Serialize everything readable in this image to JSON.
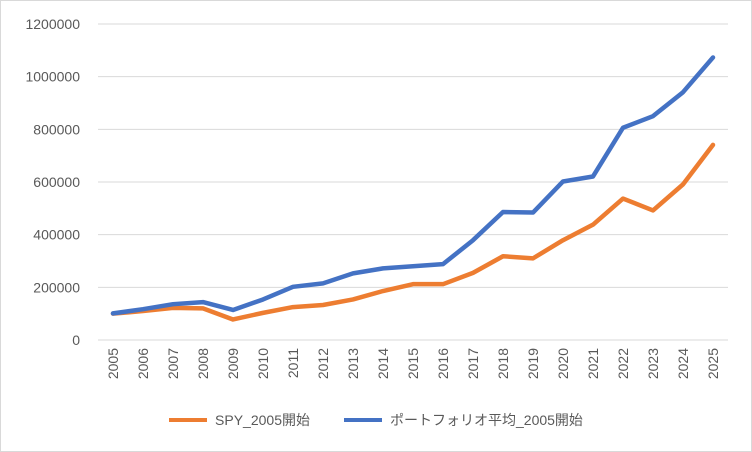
{
  "chart_data": {
    "type": "line",
    "title": "",
    "xlabel": "",
    "ylabel": "",
    "categories": [
      "2005",
      "2006",
      "2007",
      "2008",
      "2009",
      "2010",
      "2011",
      "2012",
      "2013",
      "2014",
      "2015",
      "2016",
      "2017",
      "2018",
      "2019",
      "2020",
      "2021",
      "2022",
      "2023",
      "2024",
      "2025"
    ],
    "ylim": [
      0,
      1200000
    ],
    "yticks": [
      "0",
      "200000",
      "400000",
      "600000",
      "800000",
      "1000000",
      "1200000"
    ],
    "grid": true,
    "legend_position": "bottom",
    "series": [
      {
        "name": "SPY_2005開始",
        "color": "#ED7D31",
        "values": [
          100000,
          110000,
          122000,
          120000,
          78000,
          103000,
          125000,
          133000,
          154000,
          186000,
          212000,
          212000,
          255000,
          318000,
          310000,
          379000,
          438000,
          537000,
          492000,
          591000,
          741000
        ]
      },
      {
        "name": "ポートフォリオ平均_2005開始",
        "color": "#4472C4",
        "values": [
          101000,
          117000,
          136000,
          144000,
          114000,
          154000,
          202000,
          215000,
          253000,
          272000,
          280000,
          288000,
          379000,
          486000,
          484000,
          602000,
          621000,
          806000,
          850000,
          941000,
          1073000
        ]
      }
    ]
  }
}
